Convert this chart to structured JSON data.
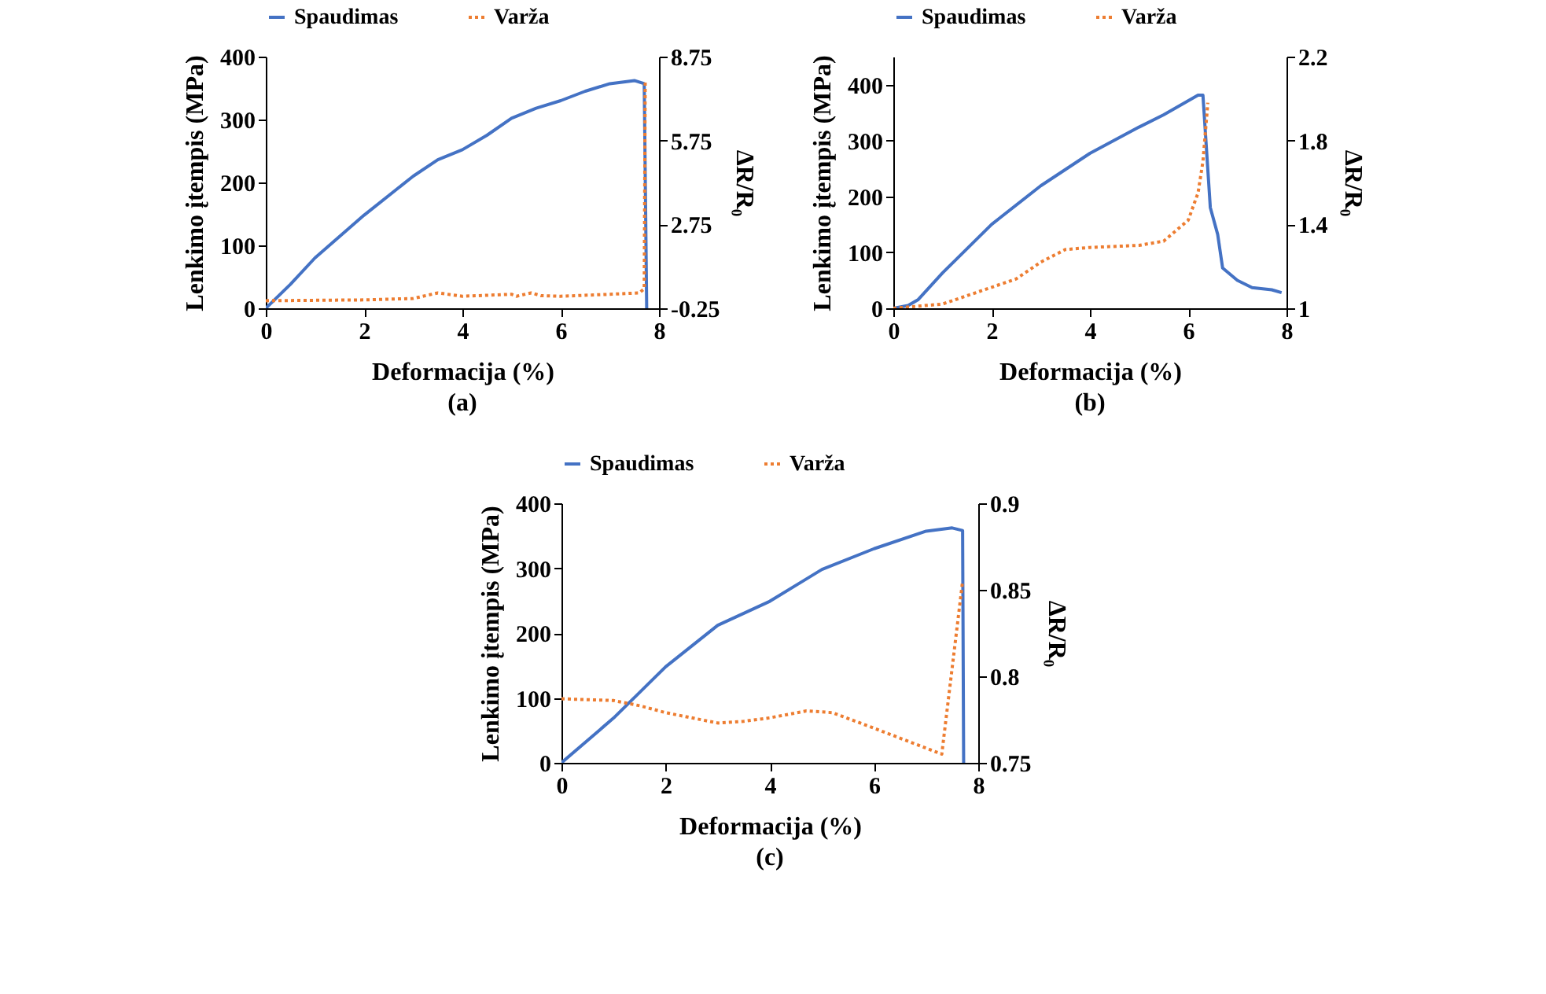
{
  "chart_data": [
    {
      "type": "line",
      "xlabel": "Deformacija (%)",
      "ylabel": "Lenkimo įtempis  (MPa)",
      "y2label": "ΔR/R₀",
      "annotations": [
        "(a)"
      ],
      "xlim": [
        0,
        8
      ],
      "xticks": [
        0,
        2,
        4,
        6,
        8
      ],
      "ylim": [
        0,
        400
      ],
      "yticks": [
        0,
        100,
        200,
        300,
        400
      ],
      "y2lim": [
        -0.25,
        8.75
      ],
      "y2ticks": [
        -0.25,
        2.75,
        5.75,
        8.75
      ],
      "grid": false,
      "legend": "top",
      "series": [
        {
          "name": "Spaudimas",
          "color": "#4472c4",
          "line_style": "solid",
          "x": [
            0,
            0.5,
            1,
            2,
            3,
            3.5,
            4,
            4.5,
            5,
            5.5,
            6,
            6.5,
            7,
            7.5,
            7.7,
            7.75
          ],
          "values": [
            0,
            38,
            80,
            148,
            210,
            236,
            252,
            275,
            302,
            318,
            330,
            345,
            357,
            362,
            357,
            0
          ]
        },
        {
          "name": "Varža",
          "color": "#ed7d31",
          "line_style": "dotted",
          "axis": "y2",
          "x": [
            0,
            2,
            3,
            3.5,
            4,
            5,
            5.1,
            5.4,
            5.6,
            6,
            7,
            7.6,
            7.7,
            7.72
          ],
          "values": [
            0.02,
            0.05,
            0.1,
            0.3,
            0.18,
            0.25,
            0.18,
            0.3,
            0.2,
            0.18,
            0.25,
            0.3,
            0.45,
            7.9
          ]
        }
      ]
    },
    {
      "type": "line",
      "xlabel": "Deformacija (%)",
      "ylabel": "Lenkimo įtempis  (MPa)",
      "y2label": "ΔR/R₀",
      "annotations": [
        "(b)"
      ],
      "xlim": [
        0,
        8
      ],
      "xticks": [
        0,
        2,
        4,
        6,
        8
      ],
      "ylim": [
        0,
        450
      ],
      "yticks": [
        0,
        100,
        200,
        300,
        400
      ],
      "y2lim": [
        1,
        2.2
      ],
      "y2ticks": [
        1,
        1.4,
        1.8,
        2.2
      ],
      "grid": false,
      "legend": "top",
      "series": [
        {
          "name": "Spaudimas",
          "color": "#4472c4",
          "line_style": "solid",
          "x": [
            0,
            0.3,
            0.5,
            1,
            2,
            3,
            4,
            5,
            5.5,
            6.2,
            6.3,
            6.45,
            6.6,
            6.7,
            7,
            7.3,
            7.7,
            7.9
          ],
          "values": [
            0,
            5,
            15,
            63,
            150,
            219,
            277,
            324,
            346,
            381,
            381,
            180,
            132,
            72,
            50,
            37,
            33,
            28
          ]
        },
        {
          "name": "Varža",
          "color": "#ed7d31",
          "line_style": "dotted",
          "axis": "y2",
          "x": [
            0,
            1,
            2,
            2.5,
            3,
            3.5,
            4,
            5,
            5.5,
            6,
            6.2,
            6.3,
            6.4
          ],
          "values": [
            1,
            1.02,
            1.1,
            1.14,
            1.22,
            1.28,
            1.29,
            1.3,
            1.32,
            1.42,
            1.55,
            1.7,
            1.98
          ]
        }
      ]
    },
    {
      "type": "line",
      "xlabel": "Deformacija (%)",
      "ylabel": "Lenkimo įtempis  (MPa)",
      "y2label": "ΔR/R₀",
      "annotations": [
        "(c)"
      ],
      "xlim": [
        0,
        8
      ],
      "xticks": [
        0,
        2,
        4,
        6,
        8
      ],
      "ylim": [
        0,
        400
      ],
      "yticks": [
        0,
        100,
        200,
        300,
        400
      ],
      "y2lim": [
        0.75,
        0.9
      ],
      "y2ticks": [
        0.75,
        0.8,
        0.85,
        0.9
      ],
      "grid": false,
      "legend": "top",
      "series": [
        {
          "name": "Spaudimas",
          "color": "#4472c4",
          "line_style": "solid",
          "x": [
            0,
            1,
            2,
            3,
            4,
            5,
            6,
            7,
            7.5,
            7.7,
            7.72
          ],
          "values": [
            0,
            69,
            148,
            212,
            249,
            298,
            330,
            357,
            362,
            358,
            0
          ]
        },
        {
          "name": "Varža",
          "color": "#ed7d31",
          "line_style": "dotted",
          "axis": "y2",
          "x": [
            0,
            1,
            1.5,
            2,
            3,
            3.5,
            4,
            4.7,
            5.2,
            6,
            7.3,
            7.7
          ],
          "values": [
            0.787,
            0.786,
            0.783,
            0.779,
            0.773,
            0.774,
            0.776,
            0.78,
            0.779,
            0.77,
            0.755,
            0.855
          ]
        }
      ]
    }
  ]
}
